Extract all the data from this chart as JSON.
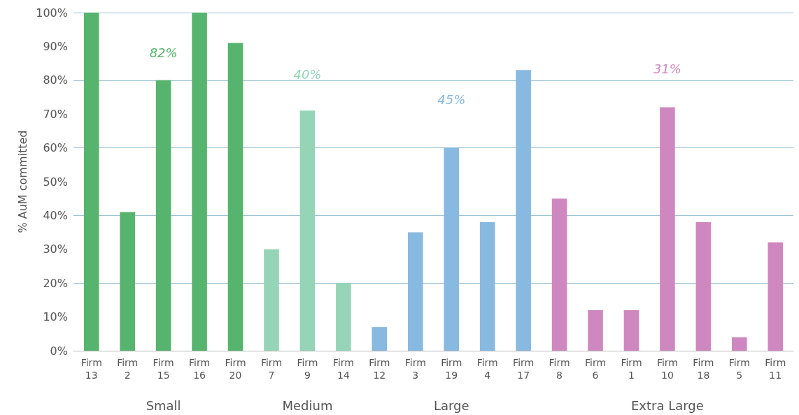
{
  "chart_data": {
    "type": "bar",
    "ylabel": "% AuM committed",
    "categories": [
      "Firm 13",
      "Firm 2",
      "Firm 15",
      "Firm 16",
      "Firm 20",
      "Firm 7",
      "Firm 9",
      "Firm 14",
      "Firm 12",
      "Firm 3",
      "Firm 19",
      "Firm 4",
      "Firm 17",
      "Firm 8",
      "Firm 6",
      "Firm 1",
      "Firm 10",
      "Firm 18",
      "Firm 5",
      "Firm 11"
    ],
    "series": [
      {
        "color": "#56b46e",
        "values": [
          100,
          41,
          80,
          100,
          91,
          null,
          null,
          null,
          null,
          null,
          null,
          null,
          null,
          null,
          null,
          null,
          null,
          null,
          null,
          null
        ]
      },
      {
        "color": "#96d4b8",
        "values": [
          null,
          null,
          null,
          null,
          null,
          30,
          71,
          20,
          null,
          null,
          null,
          null,
          null,
          null,
          null,
          null,
          null,
          null,
          null,
          null
        ]
      },
      {
        "color": "#88b9e0",
        "values": [
          null,
          null,
          null,
          null,
          null,
          null,
          null,
          null,
          7,
          35,
          60,
          38,
          83,
          null,
          null,
          null,
          null,
          null,
          null,
          null
        ]
      },
      {
        "color": "#cf88bf",
        "values": [
          null,
          null,
          null,
          null,
          null,
          null,
          null,
          null,
          null,
          null,
          null,
          null,
          null,
          45,
          12,
          12,
          72,
          38,
          4,
          32
        ]
      }
    ],
    "annotations": [
      "82%",
      "40%",
      "45%",
      "31%",
      "Small",
      "Medium",
      "Large",
      "Extra Large"
    ],
    "ylim": [
      0,
      100
    ],
    "yticks": [
      {
        "value": 0,
        "label": "0%"
      },
      {
        "value": 10,
        "label": "10%"
      },
      {
        "value": 20,
        "label": "20%"
      },
      {
        "value": 30,
        "label": "30%"
      },
      {
        "value": 40,
        "label": "40%"
      },
      {
        "value": 50,
        "label": "50%"
      },
      {
        "value": 60,
        "label": "60%"
      },
      {
        "value": 70,
        "label": "70%"
      },
      {
        "value": 80,
        "label": "80%"
      },
      {
        "value": 90,
        "label": "90%"
      },
      {
        "value": 100,
        "label": "100%"
      }
    ],
    "grid": "y"
  }
}
